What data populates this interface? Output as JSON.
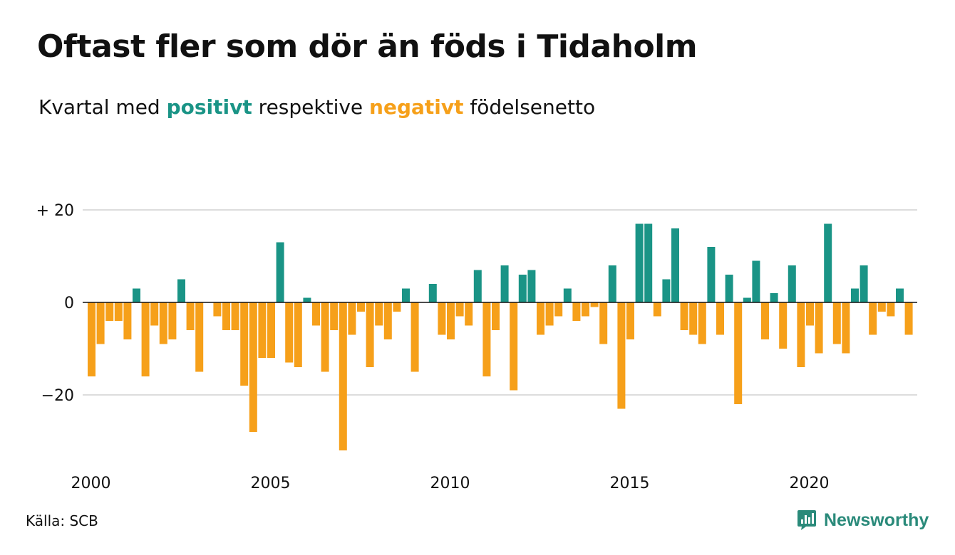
{
  "title": "Oftast fler som dör än föds i Tidaholm",
  "subtitle": {
    "prefix": "Kvartal med ",
    "positive_word": "positivt",
    "middle": " respektive ",
    "negative_word": "negativt",
    "suffix": " födelsenetto"
  },
  "source": "Källa: SCB",
  "brand": {
    "name": "Newsworthy",
    "icon": "newsworthy-logo-icon"
  },
  "colors": {
    "positive": "#1a9486",
    "negative": "#f6a01a",
    "grid": "#dddddd",
    "zero_line": "#111111"
  },
  "chart_data": {
    "type": "bar",
    "x_start": "2000 Q1",
    "x_ticks": [
      "2000",
      "2005",
      "2010",
      "2015",
      "2020"
    ],
    "y_ticks": [
      {
        "value": 20,
        "label": "+ 20"
      },
      {
        "value": 0,
        "label": "0"
      },
      {
        "value": -20,
        "label": "−20"
      }
    ],
    "ylim": [
      -33,
      21
    ],
    "grid": "horizontal",
    "values": [
      -16,
      -9,
      -4,
      -4,
      -8,
      3,
      -16,
      -5,
      -9,
      -8,
      5,
      -6,
      -15,
      0,
      -3,
      -6,
      -6,
      -18,
      -28,
      -12,
      -12,
      13,
      -13,
      -14,
      1,
      -5,
      -15,
      -6,
      -32,
      -7,
      -2,
      -14,
      -5,
      -8,
      -2,
      3,
      -15,
      0,
      4,
      -7,
      -8,
      -3,
      -5,
      7,
      -16,
      -6,
      8,
      -19,
      6,
      7,
      -7,
      -5,
      -3,
      3,
      -4,
      -3,
      -1,
      -9,
      8,
      -23,
      -8,
      17,
      17,
      -3,
      5,
      16,
      -6,
      -7,
      -9,
      12,
      -7,
      6,
      -22,
      1,
      9,
      -8,
      2,
      -10,
      8,
      -14,
      -5,
      -11,
      17,
      -9,
      -11,
      3,
      8,
      -7,
      -2,
      -3,
      3,
      -7
    ]
  }
}
